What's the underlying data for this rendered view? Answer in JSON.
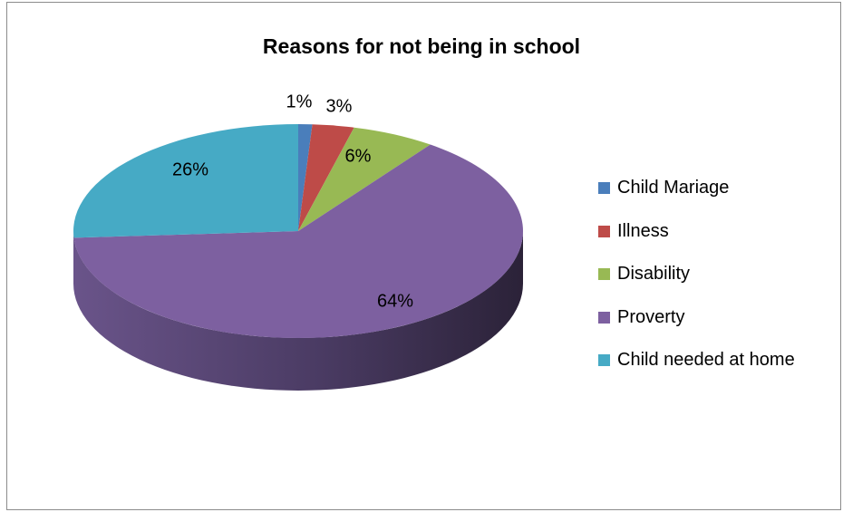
{
  "chart_data": {
    "type": "pie",
    "style": "3d",
    "title": "Reasons for not being in school",
    "categories": [
      "Child Mariage",
      "Illness",
      "Disability",
      "Proverty",
      "Child needed at home"
    ],
    "values": [
      1,
      3,
      6,
      64,
      26
    ],
    "labels": [
      "1%",
      "3%",
      "6%",
      "64%",
      "26%"
    ],
    "colors": [
      "#4a7ebb",
      "#be4b48",
      "#98b954",
      "#7d60a0",
      "#46aac5"
    ],
    "legend_position": "right"
  }
}
